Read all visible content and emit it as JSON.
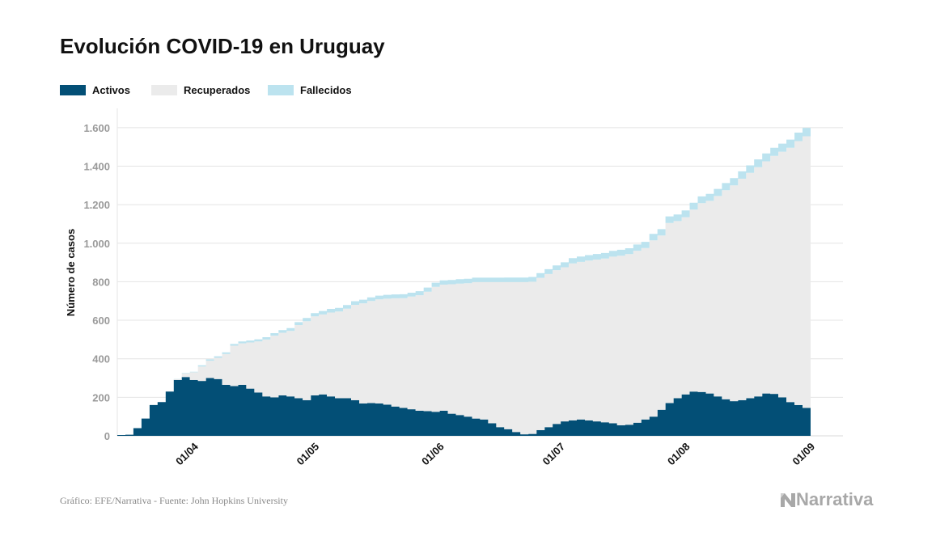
{
  "title": "Evolución COVID-19 en Uruguay",
  "source": "Gráfico: EFE/Narrativa - Fuente: John Hopkins University",
  "logo_text": "Narrativa",
  "colors": {
    "activos": "#034f76",
    "recuperados": "#ebebeb",
    "fallecidos": "#bce3ef",
    "grid": "#e4e4e4",
    "tick": "#9a9a9a",
    "text": "#111111"
  },
  "chart_data": {
    "type": "area",
    "stacked": true,
    "step": true,
    "title": "Evolución COVID-19 en Uruguay",
    "ylabel": "Número de casos",
    "xlabel": "",
    "ylim": [
      0,
      1700
    ],
    "yticks": [
      0,
      200,
      400,
      600,
      800,
      1000,
      1200,
      1400,
      1600
    ],
    "ytick_labels": [
      "0",
      "200",
      "400",
      "600",
      "800",
      "1.000",
      "1.200",
      "1.400",
      "1.600"
    ],
    "x_start": "2020-03-13",
    "x_end": "2020-09-01",
    "xticks": [
      "2020-04-01",
      "2020-05-01",
      "2020-06-01",
      "2020-07-01",
      "2020-08-01",
      "2020-09-01"
    ],
    "xtick_labels": [
      "01/04",
      "01/05",
      "01/06",
      "01/07",
      "01/08",
      "01/09"
    ],
    "grid": true,
    "legend_position": "top-left",
    "series": [
      {
        "name": "Activos",
        "color": "#034f76",
        "points": [
          [
            "2020-03-13",
            4
          ],
          [
            "2020-03-15",
            6
          ],
          [
            "2020-03-17",
            40
          ],
          [
            "2020-03-19",
            90
          ],
          [
            "2020-03-21",
            160
          ],
          [
            "2020-03-23",
            175
          ],
          [
            "2020-03-25",
            230
          ],
          [
            "2020-03-27",
            290
          ],
          [
            "2020-03-29",
            305
          ],
          [
            "2020-03-31",
            290
          ],
          [
            "2020-04-02",
            285
          ],
          [
            "2020-04-04",
            300
          ],
          [
            "2020-04-06",
            295
          ],
          [
            "2020-04-08",
            265
          ],
          [
            "2020-04-10",
            258
          ],
          [
            "2020-04-12",
            265
          ],
          [
            "2020-04-14",
            245
          ],
          [
            "2020-04-16",
            225
          ],
          [
            "2020-04-18",
            205
          ],
          [
            "2020-04-20",
            200
          ],
          [
            "2020-04-22",
            210
          ],
          [
            "2020-04-24",
            205
          ],
          [
            "2020-04-26",
            195
          ],
          [
            "2020-04-28",
            185
          ],
          [
            "2020-04-30",
            210
          ],
          [
            "2020-05-02",
            215
          ],
          [
            "2020-05-04",
            205
          ],
          [
            "2020-05-06",
            195
          ],
          [
            "2020-05-08",
            195
          ],
          [
            "2020-05-10",
            185
          ],
          [
            "2020-05-12",
            168
          ],
          [
            "2020-05-14",
            170
          ],
          [
            "2020-05-16",
            168
          ],
          [
            "2020-05-18",
            162
          ],
          [
            "2020-05-20",
            152
          ],
          [
            "2020-05-22",
            145
          ],
          [
            "2020-05-24",
            138
          ],
          [
            "2020-05-26",
            130
          ],
          [
            "2020-05-28",
            128
          ],
          [
            "2020-05-30",
            125
          ],
          [
            "2020-06-01",
            130
          ],
          [
            "2020-06-03",
            115
          ],
          [
            "2020-06-05",
            108
          ],
          [
            "2020-06-07",
            100
          ],
          [
            "2020-06-09",
            90
          ],
          [
            "2020-06-11",
            85
          ],
          [
            "2020-06-13",
            65
          ],
          [
            "2020-06-15",
            45
          ],
          [
            "2020-06-17",
            35
          ],
          [
            "2020-06-19",
            20
          ],
          [
            "2020-06-21",
            8
          ],
          [
            "2020-06-23",
            10
          ],
          [
            "2020-06-25",
            30
          ],
          [
            "2020-06-27",
            45
          ],
          [
            "2020-06-29",
            62
          ],
          [
            "2020-07-01",
            75
          ],
          [
            "2020-07-03",
            80
          ],
          [
            "2020-07-05",
            85
          ],
          [
            "2020-07-07",
            80
          ],
          [
            "2020-07-09",
            75
          ],
          [
            "2020-07-11",
            70
          ],
          [
            "2020-07-13",
            65
          ],
          [
            "2020-07-15",
            55
          ],
          [
            "2020-07-17",
            58
          ],
          [
            "2020-07-19",
            68
          ],
          [
            "2020-07-21",
            85
          ],
          [
            "2020-07-23",
            100
          ],
          [
            "2020-07-25",
            135
          ],
          [
            "2020-07-27",
            170
          ],
          [
            "2020-07-29",
            195
          ],
          [
            "2020-07-31",
            215
          ],
          [
            "2020-08-02",
            230
          ],
          [
            "2020-08-04",
            228
          ],
          [
            "2020-08-06",
            220
          ],
          [
            "2020-08-08",
            205
          ],
          [
            "2020-08-10",
            190
          ],
          [
            "2020-08-12",
            180
          ],
          [
            "2020-08-14",
            185
          ],
          [
            "2020-08-16",
            195
          ],
          [
            "2020-08-18",
            205
          ],
          [
            "2020-08-20",
            220
          ],
          [
            "2020-08-22",
            218
          ],
          [
            "2020-08-24",
            200
          ],
          [
            "2020-08-26",
            175
          ],
          [
            "2020-08-28",
            160
          ],
          [
            "2020-08-30",
            145
          ],
          [
            "2020-09-01",
            150
          ]
        ]
      },
      {
        "name": "Recuperados",
        "color": "#ebebeb",
        "points": [
          [
            "2020-03-13",
            0
          ],
          [
            "2020-03-15",
            0
          ],
          [
            "2020-03-17",
            0
          ],
          [
            "2020-03-19",
            0
          ],
          [
            "2020-03-21",
            0
          ],
          [
            "2020-03-23",
            0
          ],
          [
            "2020-03-25",
            0
          ],
          [
            "2020-03-27",
            5
          ],
          [
            "2020-03-29",
            20
          ],
          [
            "2020-03-31",
            40
          ],
          [
            "2020-04-02",
            75
          ],
          [
            "2020-04-04",
            90
          ],
          [
            "2020-04-06",
            110
          ],
          [
            "2020-04-08",
            160
          ],
          [
            "2020-04-10",
            210
          ],
          [
            "2020-04-12",
            215
          ],
          [
            "2020-04-14",
            240
          ],
          [
            "2020-04-16",
            265
          ],
          [
            "2020-04-18",
            295
          ],
          [
            "2020-04-20",
            320
          ],
          [
            "2020-04-22",
            325
          ],
          [
            "2020-04-24",
            340
          ],
          [
            "2020-04-26",
            380
          ],
          [
            "2020-04-28",
            410
          ],
          [
            "2020-04-30",
            410
          ],
          [
            "2020-05-02",
            415
          ],
          [
            "2020-05-04",
            435
          ],
          [
            "2020-05-06",
            450
          ],
          [
            "2020-05-08",
            465
          ],
          [
            "2020-05-10",
            495
          ],
          [
            "2020-05-12",
            520
          ],
          [
            "2020-05-14",
            530
          ],
          [
            "2020-05-16",
            540
          ],
          [
            "2020-05-18",
            550
          ],
          [
            "2020-05-20",
            562
          ],
          [
            "2020-05-22",
            570
          ],
          [
            "2020-05-24",
            585
          ],
          [
            "2020-05-26",
            600
          ],
          [
            "2020-05-28",
            620
          ],
          [
            "2020-05-30",
            648
          ],
          [
            "2020-06-01",
            655
          ],
          [
            "2020-06-03",
            672
          ],
          [
            "2020-06-05",
            682
          ],
          [
            "2020-06-07",
            692
          ],
          [
            "2020-06-09",
            708
          ],
          [
            "2020-06-11",
            713
          ],
          [
            "2020-06-13",
            733
          ],
          [
            "2020-06-15",
            753
          ],
          [
            "2020-06-17",
            763
          ],
          [
            "2020-06-19",
            778
          ],
          [
            "2020-06-21",
            790
          ],
          [
            "2020-06-23",
            790
          ],
          [
            "2020-06-25",
            790
          ],
          [
            "2020-06-27",
            795
          ],
          [
            "2020-06-29",
            798
          ],
          [
            "2020-07-01",
            800
          ],
          [
            "2020-07-03",
            815
          ],
          [
            "2020-07-05",
            818
          ],
          [
            "2020-07-07",
            830
          ],
          [
            "2020-07-09",
            840
          ],
          [
            "2020-07-11",
            850
          ],
          [
            "2020-07-13",
            865
          ],
          [
            "2020-07-15",
            880
          ],
          [
            "2020-07-17",
            885
          ],
          [
            "2020-07-19",
            893
          ],
          [
            "2020-07-21",
            890
          ],
          [
            "2020-07-23",
            915
          ],
          [
            "2020-07-25",
            905
          ],
          [
            "2020-07-27",
            935
          ],
          [
            "2020-07-29",
            920
          ],
          [
            "2020-07-31",
            920
          ],
          [
            "2020-08-02",
            945
          ],
          [
            "2020-08-04",
            980
          ],
          [
            "2020-08-06",
            1000
          ],
          [
            "2020-08-08",
            1040
          ],
          [
            "2020-08-10",
            1085
          ],
          [
            "2020-08-12",
            1120
          ],
          [
            "2020-08-14",
            1150
          ],
          [
            "2020-08-16",
            1170
          ],
          [
            "2020-08-18",
            1190
          ],
          [
            "2020-08-20",
            1205
          ],
          [
            "2020-08-22",
            1235
          ],
          [
            "2020-08-24",
            1275
          ],
          [
            "2020-08-26",
            1320
          ],
          [
            "2020-08-28",
            1370
          ],
          [
            "2020-08-30",
            1410
          ],
          [
            "2020-09-01",
            1435
          ]
        ]
      },
      {
        "name": "Fallecidos",
        "color": "#bce3ef",
        "points": [
          [
            "2020-03-13",
            0
          ],
          [
            "2020-03-15",
            0
          ],
          [
            "2020-03-17",
            0
          ],
          [
            "2020-03-19",
            0
          ],
          [
            "2020-03-21",
            0
          ],
          [
            "2020-03-23",
            0
          ],
          [
            "2020-03-25",
            0
          ],
          [
            "2020-03-27",
            1
          ],
          [
            "2020-03-29",
            2
          ],
          [
            "2020-03-31",
            3
          ],
          [
            "2020-04-02",
            6
          ],
          [
            "2020-04-04",
            7
          ],
          [
            "2020-04-06",
            8
          ],
          [
            "2020-04-08",
            8
          ],
          [
            "2020-04-10",
            9
          ],
          [
            "2020-04-12",
            10
          ],
          [
            "2020-04-14",
            10
          ],
          [
            "2020-04-16",
            11
          ],
          [
            "2020-04-18",
            12
          ],
          [
            "2020-04-20",
            13
          ],
          [
            "2020-04-22",
            14
          ],
          [
            "2020-04-24",
            14
          ],
          [
            "2020-04-26",
            15
          ],
          [
            "2020-04-28",
            17
          ],
          [
            "2020-04-30",
            17
          ],
          [
            "2020-05-02",
            18
          ],
          [
            "2020-05-04",
            19
          ],
          [
            "2020-05-06",
            19
          ],
          [
            "2020-05-08",
            19
          ],
          [
            "2020-05-10",
            19
          ],
          [
            "2020-05-12",
            19
          ],
          [
            "2020-05-14",
            19
          ],
          [
            "2020-05-16",
            20
          ],
          [
            "2020-05-18",
            20
          ],
          [
            "2020-05-20",
            20
          ],
          [
            "2020-05-22",
            20
          ],
          [
            "2020-05-24",
            20
          ],
          [
            "2020-05-26",
            21
          ],
          [
            "2020-05-28",
            22
          ],
          [
            "2020-05-30",
            22
          ],
          [
            "2020-06-01",
            22
          ],
          [
            "2020-06-03",
            22
          ],
          [
            "2020-06-05",
            23
          ],
          [
            "2020-06-07",
            23
          ],
          [
            "2020-06-09",
            23
          ],
          [
            "2020-06-11",
            23
          ],
          [
            "2020-06-13",
            23
          ],
          [
            "2020-06-15",
            23
          ],
          [
            "2020-06-17",
            24
          ],
          [
            "2020-06-19",
            24
          ],
          [
            "2020-06-21",
            24
          ],
          [
            "2020-06-23",
            25
          ],
          [
            "2020-06-25",
            25
          ],
          [
            "2020-06-27",
            25
          ],
          [
            "2020-06-29",
            25
          ],
          [
            "2020-07-01",
            26
          ],
          [
            "2020-07-03",
            27
          ],
          [
            "2020-07-05",
            28
          ],
          [
            "2020-07-07",
            28
          ],
          [
            "2020-07-09",
            29
          ],
          [
            "2020-07-11",
            29
          ],
          [
            "2020-07-13",
            30
          ],
          [
            "2020-07-15",
            31
          ],
          [
            "2020-07-17",
            31
          ],
          [
            "2020-07-19",
            32
          ],
          [
            "2020-07-21",
            32
          ],
          [
            "2020-07-23",
            33
          ],
          [
            "2020-07-25",
            33
          ],
          [
            "2020-07-27",
            34
          ],
          [
            "2020-07-29",
            34
          ],
          [
            "2020-07-31",
            35
          ],
          [
            "2020-08-02",
            35
          ],
          [
            "2020-08-04",
            35
          ],
          [
            "2020-08-06",
            36
          ],
          [
            "2020-08-08",
            37
          ],
          [
            "2020-08-10",
            37
          ],
          [
            "2020-08-12",
            38
          ],
          [
            "2020-08-14",
            38
          ],
          [
            "2020-08-16",
            39
          ],
          [
            "2020-08-18",
            40
          ],
          [
            "2020-08-20",
            41
          ],
          [
            "2020-08-22",
            42
          ],
          [
            "2020-08-24",
            42
          ],
          [
            "2020-08-26",
            43
          ],
          [
            "2020-08-28",
            44
          ],
          [
            "2020-08-30",
            44
          ],
          [
            "2020-09-01",
            45
          ]
        ]
      }
    ]
  }
}
